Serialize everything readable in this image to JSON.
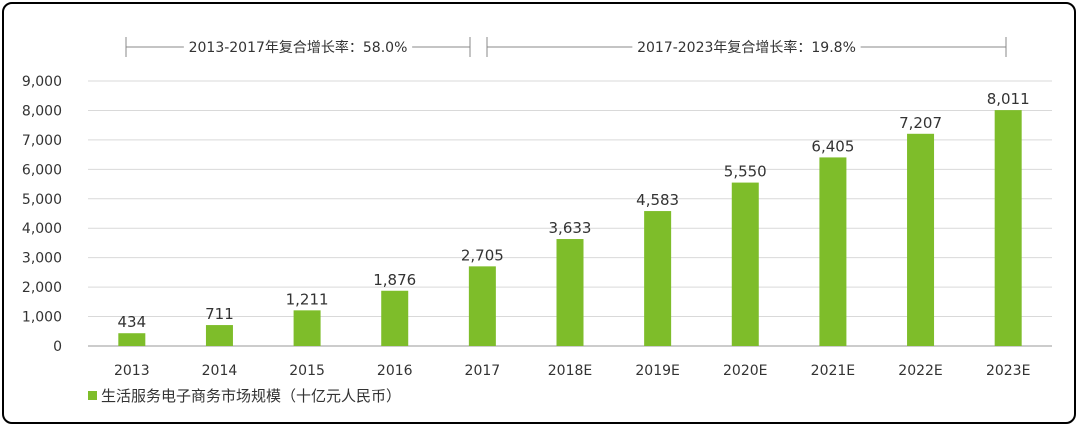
{
  "chart_data": {
    "type": "bar",
    "categories": [
      "2013",
      "2014",
      "2015",
      "2016",
      "2017",
      "2018E",
      "2019E",
      "2020E",
      "2021E",
      "2022E",
      "2023E"
    ],
    "series": [
      {
        "name": "生活服务电子商务市场规模（十亿元人民币）",
        "values": [
          434,
          711,
          1211,
          1876,
          2705,
          3633,
          4583,
          5550,
          6405,
          7207,
          8011
        ],
        "labels": [
          "434",
          "711",
          "1,211",
          "1,876",
          "2,705",
          "3,633",
          "4,583",
          "5,550",
          "6,405",
          "7,207",
          "8,011"
        ]
      }
    ],
    "ylim": [
      0,
      9000
    ],
    "yticks": [
      0,
      1000,
      2000,
      3000,
      4000,
      5000,
      6000,
      7000,
      8000,
      9000
    ],
    "ytick_labels": [
      "0",
      "1,000",
      "2,000",
      "3,000",
      "4,000",
      "5,000",
      "6,000",
      "7,000",
      "8,000",
      "9,000"
    ],
    "grid": true,
    "legend_position": "bottom-left",
    "annotations": [
      {
        "text": "2013-2017年复合增长率：58.0%",
        "from": "2013",
        "to": "2017"
      },
      {
        "text": "2017-2023年复合增长率：19.8%",
        "from": "2017",
        "to": "2023E"
      }
    ],
    "bar_color": "#7ebd2a",
    "grid_color": "#d9d9d9"
  }
}
